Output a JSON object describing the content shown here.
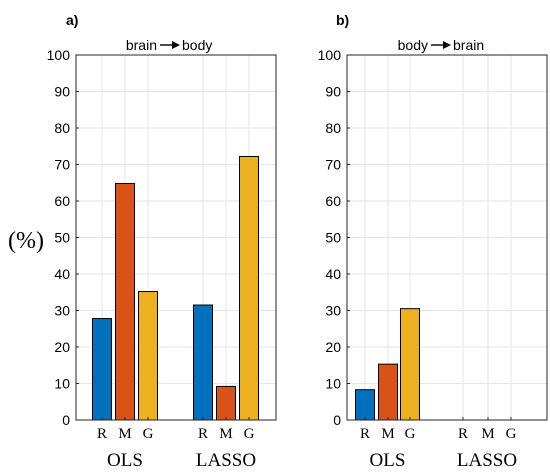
{
  "figure": {
    "y_unit_label": "(%)",
    "colors": {
      "R": "#0072BD",
      "M": "#D95319",
      "G": "#EDB120"
    }
  },
  "chart_data": [
    {
      "type": "bar",
      "panel_label": "a)",
      "title": "brain→body",
      "title_parts": {
        "left": "brain",
        "right": "body"
      },
      "ylim": [
        0,
        100
      ],
      "yticks": [
        0,
        10,
        20,
        30,
        40,
        50,
        60,
        70,
        80,
        90,
        100
      ],
      "grid": true,
      "groups": [
        {
          "label": "OLS",
          "bars": [
            {
              "label": "R",
              "value": 27.8
            },
            {
              "label": "M",
              "value": 64.8
            },
            {
              "label": "G",
              "value": 35.2
            }
          ]
        },
        {
          "label": "LASSO",
          "bars": [
            {
              "label": "R",
              "value": 31.5
            },
            {
              "label": "M",
              "value": 9.2
            },
            {
              "label": "G",
              "value": 72.2
            }
          ]
        }
      ]
    },
    {
      "type": "bar",
      "panel_label": "b)",
      "title": "body→brain",
      "title_parts": {
        "left": "body",
        "right": "brain"
      },
      "ylim": [
        0,
        100
      ],
      "yticks": [
        0,
        10,
        20,
        30,
        40,
        50,
        60,
        70,
        80,
        90,
        100
      ],
      "grid": true,
      "groups": [
        {
          "label": "OLS",
          "bars": [
            {
              "label": "R",
              "value": 8.3
            },
            {
              "label": "M",
              "value": 15.3
            },
            {
              "label": "G",
              "value": 30.5
            }
          ]
        },
        {
          "label": "LASSO",
          "bars": [
            {
              "label": "R",
              "value": 0
            },
            {
              "label": "M",
              "value": 0
            },
            {
              "label": "G",
              "value": 0
            }
          ]
        }
      ]
    }
  ]
}
